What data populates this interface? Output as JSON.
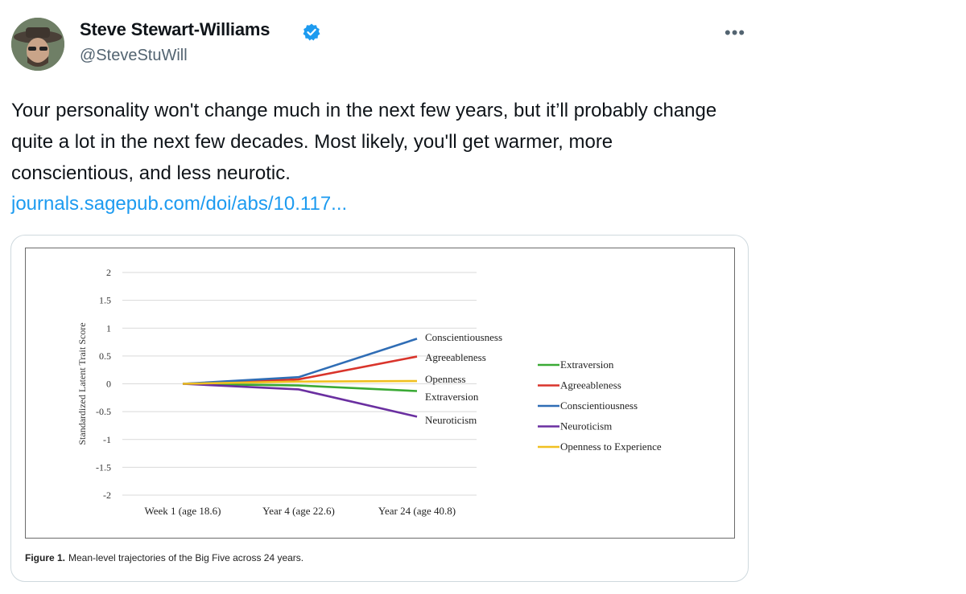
{
  "tweet": {
    "author_name": "Steve Stewart-Williams",
    "handle": "@SteveStuWill",
    "more_label": "•••",
    "text": "Your personality won't change much in the next few years, but it’ll probably change quite a lot in the next few decades. Most likely, you'll get warmer, more conscientious, and less neurotic.",
    "link": "journals.sagepub.com/doi/abs/10.117...",
    "verified_color": "#1d9bf0",
    "link_color": "#1d9bf0"
  },
  "figure": {
    "caption_label": "Figure 1.",
    "caption_text": "Mean-level trajectories of the Big Five across 24 years."
  },
  "chart_data": {
    "type": "line",
    "ylabel": "Standardized Latent Trait Score",
    "xlabel": "",
    "title": "",
    "categories": [
      "Week 1 (age 18.6)",
      "Year 4 (age 22.6)",
      "Year 24 (age 40.8)"
    ],
    "yticks": [
      "2",
      "1.5",
      "1",
      "0.5",
      "0",
      "-0.5",
      "-1",
      "-1.5",
      "-2"
    ],
    "ylim": [
      -2,
      2
    ],
    "grid": true,
    "legend_position": "right",
    "series": [
      {
        "name": "Extraversion",
        "end_label": "Extraversion",
        "color": "#3aaa35",
        "values": [
          0,
          -0.03,
          -0.13
        ]
      },
      {
        "name": "Agreeableness",
        "end_label": "Agreeableness",
        "color": "#d9342b",
        "values": [
          0,
          0.08,
          0.49
        ]
      },
      {
        "name": "Conscientiousness",
        "end_label": "Conscientiousness",
        "color": "#2f6db5",
        "values": [
          0,
          0.12,
          0.81
        ]
      },
      {
        "name": "Neuroticism",
        "end_label": "Neuroticism",
        "color": "#6a2fa0",
        "values": [
          0,
          -0.1,
          -0.59
        ]
      },
      {
        "name": "Openness to Experience",
        "end_label": "Openness",
        "color": "#f0c020",
        "values": [
          0,
          0.04,
          0.05
        ]
      }
    ]
  }
}
